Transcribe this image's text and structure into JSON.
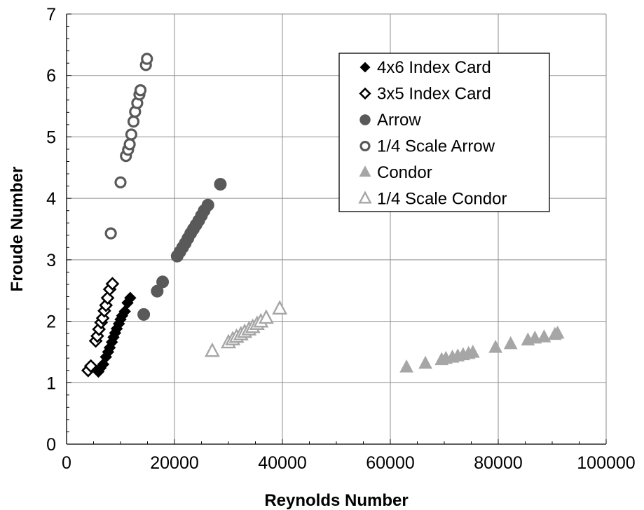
{
  "chart_data": {
    "type": "scatter",
    "xlabel": "Reynolds Number",
    "ylabel": "Froude Number",
    "xlim": [
      0,
      100000
    ],
    "ylim": [
      0,
      7
    ],
    "xticks": [
      0,
      20000,
      40000,
      60000,
      80000,
      100000
    ],
    "yticks": [
      0,
      1,
      2,
      3,
      4,
      5,
      6,
      7
    ],
    "grid": true,
    "legend_position": "top-right",
    "series": [
      {
        "name": "4x6 Index Card",
        "marker": "diamond",
        "fill": "#000000",
        "stroke": "#000000",
        "points": [
          [
            5900,
            1.18
          ],
          [
            6300,
            1.24
          ],
          [
            6800,
            1.3
          ],
          [
            7300,
            1.42
          ],
          [
            7700,
            1.5
          ],
          [
            8000,
            1.57
          ],
          [
            8400,
            1.66
          ],
          [
            8700,
            1.74
          ],
          [
            9000,
            1.81
          ],
          [
            9300,
            1.88
          ],
          [
            9700,
            1.96
          ],
          [
            10000,
            2.03
          ],
          [
            10300,
            2.09
          ],
          [
            10800,
            2.16
          ],
          [
            11300,
            2.3
          ],
          [
            11800,
            2.38
          ]
        ]
      },
      {
        "name": "3x5 Index Card",
        "marker": "diamond",
        "fill": "#ffffff",
        "stroke": "#000000",
        "points": [
          [
            4000,
            1.2
          ],
          [
            4500,
            1.27
          ],
          [
            5400,
            1.68
          ],
          [
            5700,
            1.76
          ],
          [
            6000,
            1.87
          ],
          [
            6400,
            1.98
          ],
          [
            6700,
            2.05
          ],
          [
            7000,
            2.17
          ],
          [
            7300,
            2.26
          ],
          [
            7600,
            2.38
          ],
          [
            8000,
            2.52
          ],
          [
            8500,
            2.61
          ]
        ]
      },
      {
        "name": "Arrow",
        "marker": "circle",
        "fill": "#595959",
        "stroke": "#595959",
        "points": [
          [
            14300,
            2.11
          ],
          [
            16800,
            2.49
          ],
          [
            17800,
            2.64
          ],
          [
            20500,
            3.06
          ],
          [
            21000,
            3.13
          ],
          [
            21500,
            3.2
          ],
          [
            22000,
            3.27
          ],
          [
            22500,
            3.35
          ],
          [
            23000,
            3.43
          ],
          [
            23500,
            3.5
          ],
          [
            24000,
            3.57
          ],
          [
            24500,
            3.64
          ],
          [
            25000,
            3.72
          ],
          [
            25500,
            3.8
          ],
          [
            26200,
            3.89
          ],
          [
            28500,
            4.23
          ]
        ]
      },
      {
        "name": "1/4 Scale Arrow",
        "marker": "circle",
        "fill": "#ffffff",
        "stroke": "#595959",
        "points": [
          [
            8200,
            3.43
          ],
          [
            10000,
            4.26
          ],
          [
            11000,
            4.69
          ],
          [
            11400,
            4.79
          ],
          [
            11700,
            4.88
          ],
          [
            12000,
            5.04
          ],
          [
            12400,
            5.25
          ],
          [
            12700,
            5.41
          ],
          [
            13100,
            5.55
          ],
          [
            13500,
            5.69
          ],
          [
            13700,
            5.76
          ],
          [
            14700,
            6.17
          ],
          [
            14900,
            6.27
          ]
        ]
      },
      {
        "name": "Condor",
        "marker": "triangle",
        "fill": "#a6a6a6",
        "stroke": "#a6a6a6",
        "points": [
          [
            63000,
            1.25
          ],
          [
            66500,
            1.31
          ],
          [
            69500,
            1.37
          ],
          [
            70300,
            1.39
          ],
          [
            71500,
            1.41
          ],
          [
            72500,
            1.43
          ],
          [
            73500,
            1.45
          ],
          [
            74500,
            1.47
          ],
          [
            75300,
            1.49
          ],
          [
            79500,
            1.57
          ],
          [
            82300,
            1.63
          ],
          [
            85500,
            1.69
          ],
          [
            86800,
            1.72
          ],
          [
            88500,
            1.74
          ],
          [
            90500,
            1.78
          ],
          [
            91000,
            1.8
          ]
        ]
      },
      {
        "name": "1/4 Scale Condor",
        "marker": "triangle",
        "fill": "#ffffff",
        "stroke": "#a6a6a6",
        "points": [
          [
            27000,
            1.51
          ],
          [
            30000,
            1.65
          ],
          [
            30800,
            1.7
          ],
          [
            31500,
            1.74
          ],
          [
            32300,
            1.78
          ],
          [
            33000,
            1.82
          ],
          [
            33800,
            1.86
          ],
          [
            34500,
            1.9
          ],
          [
            35300,
            1.95
          ],
          [
            36000,
            1.99
          ],
          [
            37000,
            2.05
          ],
          [
            39500,
            2.2
          ]
        ]
      }
    ]
  }
}
